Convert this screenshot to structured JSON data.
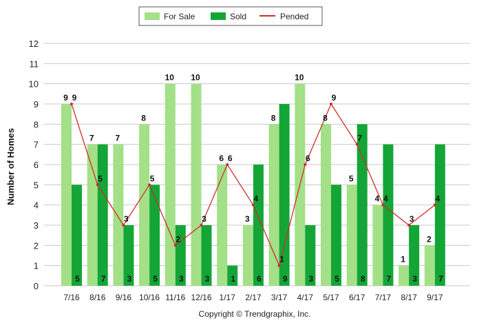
{
  "chart_data": {
    "type": "bar",
    "ylabel": "Number of Homes",
    "xlabel": "",
    "ylim": [
      0,
      12
    ],
    "y_ticks": [
      "0",
      "1",
      "2",
      "3",
      "4",
      "5",
      "6",
      "7",
      "8",
      "9",
      "10",
      "11",
      "12"
    ],
    "grid": true,
    "legend_position": "top-center",
    "categories": [
      "7/16",
      "8/16",
      "9/16",
      "10/16",
      "11/16",
      "12/16",
      "1/17",
      "2/17",
      "3/17",
      "4/17",
      "5/17",
      "6/17",
      "7/17",
      "8/17",
      "9/17"
    ],
    "series": [
      {
        "name": "For Sale",
        "type": "bar",
        "color": "#a3e088",
        "values": [
          9,
          7,
          7,
          8,
          10,
          10,
          6,
          3,
          8,
          10,
          8,
          5,
          4,
          1,
          2
        ]
      },
      {
        "name": "Sold",
        "type": "bar",
        "color": "#13a637",
        "values": [
          5,
          7,
          3,
          5,
          3,
          3,
          1,
          6,
          9,
          3,
          5,
          8,
          7,
          3,
          7
        ]
      },
      {
        "name": "Pended",
        "type": "line",
        "color": "#d42a2a",
        "values": [
          9,
          5,
          3,
          5,
          2,
          3,
          6,
          4,
          1,
          6,
          9,
          7,
          4,
          3,
          4
        ]
      }
    ],
    "copyright": "Copyright © Trendgraphix, Inc."
  }
}
